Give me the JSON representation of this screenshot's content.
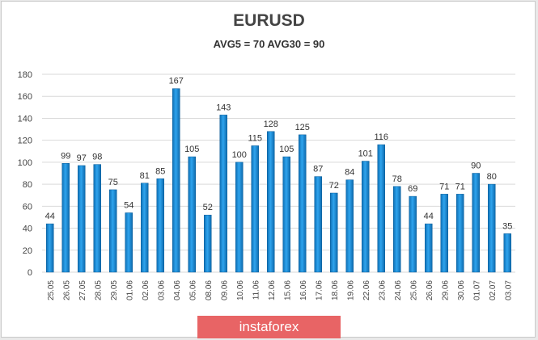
{
  "chart_data": {
    "type": "bar",
    "title": "EURUSD",
    "subtitle": "AVG5 = 70 AVG30 = 90",
    "categories": [
      "25.05",
      "26.05",
      "27.05",
      "28.05",
      "29.05",
      "01.06",
      "02.06",
      "03.06",
      "04.06",
      "05.06",
      "08.06",
      "09.06",
      "10.06",
      "11.06",
      "12.06",
      "15.06",
      "16.06",
      "17.06",
      "18.06",
      "19.06",
      "22.06",
      "23.06",
      "24.06",
      "25.06",
      "26.06",
      "29.06",
      "30.06",
      "01.07",
      "02.07",
      "03.07"
    ],
    "values": [
      44,
      99,
      97,
      98,
      75,
      54,
      81,
      85,
      167,
      105,
      52,
      143,
      100,
      115,
      128,
      105,
      125,
      87,
      72,
      84,
      101,
      116,
      78,
      69,
      44,
      71,
      71,
      90,
      80,
      35
    ],
    "yticks": [
      "0",
      "20",
      "40",
      "60",
      "80",
      "100",
      "120",
      "140",
      "160",
      "180"
    ],
    "ylim": [
      0,
      180
    ],
    "grid": true,
    "legend": "none",
    "bar_color": "#1b8fd8"
  },
  "logo": {
    "text": "instaforex",
    "color": "#e86465"
  }
}
